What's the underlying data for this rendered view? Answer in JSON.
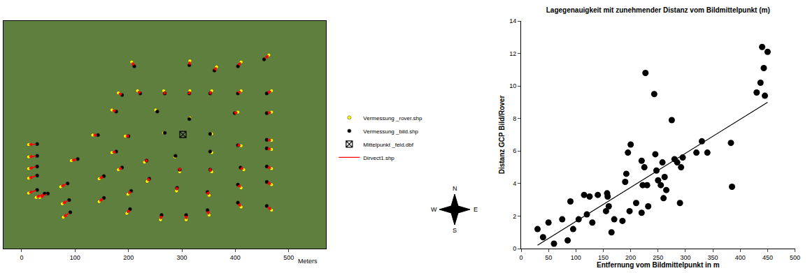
{
  "chart_data": [
    {
      "type": "map",
      "xlim": [
        -34,
        570
      ],
      "ylim": [
        0,
        427
      ],
      "xticks": [
        0,
        100,
        200,
        300,
        400,
        500
      ],
      "xlabel": "Meters",
      "tick_labels": "x",
      "legend": "right",
      "compass": [
        "N",
        "E",
        "S",
        "W"
      ],
      "series": [
        {
          "name": "Vermessung _rover.shp",
          "color": "#ffff00",
          "marker": "circle",
          "points": [
            [
              206,
              350
            ],
            [
              315,
              352
            ],
            [
              365,
              341
            ],
            [
              411,
              350
            ],
            [
              463,
              363
            ],
            [
              181,
              292
            ],
            [
              217,
              296
            ],
            [
              266,
              296
            ],
            [
              315,
              296
            ],
            [
              356,
              296
            ],
            [
              411,
              296
            ],
            [
              468,
              296
            ],
            [
              169,
              260
            ],
            [
              251,
              260
            ],
            [
              315,
              245
            ],
            [
              405,
              256
            ],
            [
              468,
              256
            ],
            [
              133,
              213
            ],
            [
              194,
              211
            ],
            [
              266,
              217
            ],
            [
              356,
              215
            ],
            [
              468,
              203
            ],
            [
              13,
              195
            ],
            [
              93,
              165
            ],
            [
              169,
              180
            ],
            [
              230,
              162
            ],
            [
              287,
              172
            ],
            [
              356,
              180
            ],
            [
              411,
              193
            ],
            [
              468,
              186
            ],
            [
              13,
              172
            ],
            [
              13,
              150
            ],
            [
              13,
              132
            ],
            [
              73,
              116
            ],
            [
              145,
              131
            ],
            [
              181,
              148
            ],
            [
              235,
              126
            ],
            [
              296,
              144
            ],
            [
              356,
              144
            ],
            [
              416,
              148
            ],
            [
              468,
              150
            ],
            [
              13,
              104
            ],
            [
              34,
              96
            ],
            [
              76,
              84
            ],
            [
              145,
              88
            ],
            [
              199,
              102
            ],
            [
              290,
              108
            ],
            [
              351,
              100
            ],
            [
              411,
              114
            ],
            [
              468,
              120
            ],
            [
              27,
              96
            ],
            [
              78,
              59
            ],
            [
              197,
              66
            ],
            [
              260,
              54
            ],
            [
              308,
              54
            ],
            [
              351,
              63
            ],
            [
              411,
              78
            ],
            [
              468,
              72
            ]
          ]
        },
        {
          "name": "Vermessung _bild.shp",
          "color": "#000000",
          "marker": "circle",
          "points": [
            [
              211,
              342
            ],
            [
              314,
              344
            ],
            [
              361,
              334
            ],
            [
              405,
              342
            ],
            [
              454,
              355
            ],
            [
              188,
              288
            ],
            [
              222,
              291
            ],
            [
              268,
              291
            ],
            [
              314,
              291
            ],
            [
              353,
              291
            ],
            [
              405,
              291
            ],
            [
              459,
              291
            ],
            [
              177,
              257
            ],
            [
              254,
              257
            ],
            [
              314,
              243
            ],
            [
              399,
              254
            ],
            [
              459,
              254
            ],
            [
              143,
              213
            ],
            [
              200,
              211
            ],
            [
              268,
              217
            ],
            [
              353,
              215
            ],
            [
              459,
              204
            ],
            [
              29,
              196
            ],
            [
              105,
              168
            ],
            [
              177,
              182
            ],
            [
              234,
              165
            ],
            [
              288,
              174
            ],
            [
              353,
              182
            ],
            [
              405,
              194
            ],
            [
              459,
              188
            ],
            [
              29,
              174
            ],
            [
              29,
              154
            ],
            [
              29,
              137
            ],
            [
              86,
              122
            ],
            [
              154,
              136
            ],
            [
              188,
              152
            ],
            [
              239,
              131
            ],
            [
              296,
              148
            ],
            [
              353,
              148
            ],
            [
              410,
              152
            ],
            [
              459,
              154
            ],
            [
              29,
              110
            ],
            [
              49,
              103
            ],
            [
              89,
              91
            ],
            [
              154,
              95
            ],
            [
              205,
              108
            ],
            [
              291,
              114
            ],
            [
              348,
              106
            ],
            [
              405,
              120
            ],
            [
              459,
              125
            ],
            [
              43,
              103
            ],
            [
              91,
              68
            ],
            [
              203,
              74
            ],
            [
              262,
              63
            ],
            [
              308,
              63
            ],
            [
              348,
              72
            ],
            [
              405,
              86
            ],
            [
              459,
              80
            ]
          ]
        },
        {
          "name": "Mittelpunkt _feld.dbf",
          "color": "#000000",
          "marker": "square-x-open",
          "points": [
            [
              302,
              214
            ]
          ]
        },
        {
          "name": "Dirvect1.shp",
          "color": "#ff0000",
          "type": "arrow",
          "line_style": "solid"
        }
      ]
    },
    {
      "type": "scatter",
      "title": "Lagegenauigkeit mit zunehmender Distanz vom Bildmittelpunkt (m)",
      "xlabel": "Entfernung vom Bildmittelpunkt in m",
      "ylabel": "Distanz GCP Bild/Rover",
      "color": "#000000",
      "marker": "circle",
      "x": [
        30,
        40,
        50,
        60,
        75,
        85,
        90,
        95,
        105,
        115,
        120,
        125,
        130,
        140,
        155,
        157,
        158,
        160,
        165,
        170,
        185,
        190,
        192,
        195,
        198,
        200,
        210,
        220,
        220,
        222,
        225,
        227,
        230,
        232,
        243,
        245,
        247,
        250,
        255,
        258,
        260,
        262,
        265,
        275,
        280,
        285,
        290,
        292,
        295,
        320,
        330,
        340,
        383,
        385,
        430,
        437,
        440,
        443,
        445,
        450
      ],
      "values": [
        1.2,
        0.7,
        1.6,
        0.3,
        1.8,
        0.5,
        2.9,
        1.2,
        1.8,
        3.3,
        2.1,
        3.2,
        1.6,
        3.3,
        2.3,
        3.4,
        3.2,
        2.6,
        1.0,
        1.8,
        1.7,
        4.1,
        4.6,
        5.9,
        2.3,
        6.4,
        2.8,
        5.4,
        2.2,
        3.9,
        5.0,
        10.8,
        3.9,
        2.6,
        9.5,
        5.8,
        4.8,
        4.2,
        3.9,
        5.3,
        3.1,
        4.4,
        3.6,
        7.9,
        5.5,
        5.3,
        2.8,
        5.0,
        5.6,
        5.9,
        6.6,
        5.9,
        6.5,
        3.8,
        9.6,
        10.2,
        12.4,
        11.1,
        9.4,
        12.1
      ],
      "trendline": {
        "x": [
          30,
          450
        ],
        "values": [
          0.2,
          9.0
        ]
      },
      "xlim": [
        0,
        500
      ],
      "xticks": [
        0,
        50,
        100,
        150,
        200,
        250,
        300,
        350,
        400,
        450,
        500
      ],
      "ylim": [
        0,
        14
      ],
      "yticks": [
        0,
        2,
        4,
        6,
        8,
        10,
        12,
        14
      ],
      "grid": false
    }
  ]
}
